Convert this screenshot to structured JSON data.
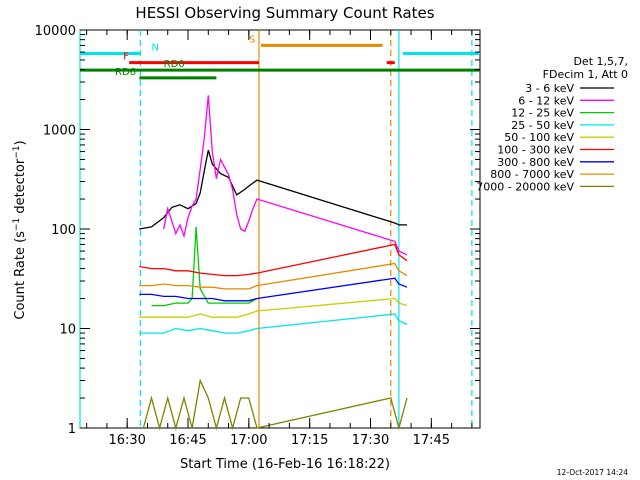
{
  "chart_data": {
    "type": "line",
    "title": "HESSI Observing Summary Count Rates",
    "xlabel": "Start Time (16-Feb-16 16:18:22)",
    "ylabel": "Count Rate (s⁻¹ detector⁻¹)",
    "ylabel_main": "Count Rate (s",
    "ylabel_mid": " detector",
    "ylabel_end": ")",
    "y_scale": "log",
    "ylim": [
      1,
      10000
    ],
    "xlim": [
      "16:18:22",
      "17:57:00"
    ],
    "x_ticks": [
      "16:30",
      "16:45",
      "17:00",
      "17:15",
      "17:30",
      "17:45"
    ],
    "y_ticks": [
      "1",
      "10",
      "100",
      "1000",
      "10000"
    ],
    "grid": false,
    "legend_placement": "right",
    "legend_header": [
      "Det 1,5,7,",
      "FDecim 1, Att 0"
    ],
    "timestamp": "12-Oct-2017 14:24",
    "series": [
      {
        "name": "3 - 6 keV",
        "color": "#000000",
        "points": [
          [
            "16:33",
            100
          ],
          [
            "16:36",
            105
          ],
          [
            "16:39",
            130
          ],
          [
            "16:41",
            165
          ],
          [
            "16:43",
            175
          ],
          [
            "16:45",
            160
          ],
          [
            "16:47",
            180
          ],
          [
            "16:48",
            230
          ],
          [
            "16:49",
            380
          ],
          [
            "16:50",
            620
          ],
          [
            "16:51",
            450
          ],
          [
            "16:53",
            360
          ],
          [
            "16:55",
            330
          ],
          [
            "16:57",
            220
          ],
          [
            "16:59",
            250
          ],
          [
            "17:00",
            270
          ],
          [
            "17:02",
            310
          ],
          [
            "17:36",
            115
          ],
          [
            "17:37",
            110
          ],
          [
            "17:39",
            110
          ]
        ]
      },
      {
        "name": "6 - 12 keV",
        "color": "#ff00ff",
        "points": [
          [
            "16:39",
            100
          ],
          [
            "16:40",
            160
          ],
          [
            "16:41",
            120
          ],
          [
            "16:42",
            90
          ],
          [
            "16:43",
            110
          ],
          [
            "16:44",
            85
          ],
          [
            "16:45",
            130
          ],
          [
            "16:46",
            170
          ],
          [
            "16:47",
            200
          ],
          [
            "16:48",
            400
          ],
          [
            "16:49",
            800
          ],
          [
            "16:50",
            2200
          ],
          [
            "16:51",
            600
          ],
          [
            "16:52",
            320
          ],
          [
            "16:53",
            500
          ],
          [
            "16:55",
            350
          ],
          [
            "16:56",
            250
          ],
          [
            "16:57",
            140
          ],
          [
            "16:58",
            100
          ],
          [
            "16:59",
            95
          ],
          [
            "17:00",
            120
          ],
          [
            "17:01",
            160
          ],
          [
            "17:02",
            200
          ],
          [
            "17:36",
            75
          ],
          [
            "17:37",
            60
          ],
          [
            "17:39",
            55
          ]
        ]
      },
      {
        "name": "12 - 25 keV",
        "color": "#00cc00",
        "points": [
          [
            "16:36",
            17
          ],
          [
            "16:39",
            17
          ],
          [
            "16:42",
            18
          ],
          [
            "16:45",
            18
          ],
          [
            "16:46",
            20
          ],
          [
            "16:47",
            105
          ],
          [
            "16:48",
            25
          ],
          [
            "16:50",
            18
          ],
          [
            "16:53",
            18
          ],
          [
            "16:57",
            18
          ],
          [
            "17:00",
            18
          ],
          [
            "17:02",
            20
          ]
        ]
      },
      {
        "name": "25 - 50 keV",
        "color": "#00e6e6",
        "points": [
          [
            "16:33",
            9
          ],
          [
            "16:36",
            9
          ],
          [
            "16:39",
            9
          ],
          [
            "16:42",
            10
          ],
          [
            "16:45",
            9.5
          ],
          [
            "16:48",
            10
          ],
          [
            "16:51",
            9.5
          ],
          [
            "16:54",
            9
          ],
          [
            "16:57",
            9
          ],
          [
            "17:00",
            9.5
          ],
          [
            "17:02",
            10
          ],
          [
            "17:36",
            14
          ],
          [
            "17:37",
            12
          ],
          [
            "17:39",
            11
          ]
        ]
      },
      {
        "name": "50 - 100 keV",
        "color": "#cccc00",
        "points": [
          [
            "16:33",
            13
          ],
          [
            "16:36",
            13
          ],
          [
            "16:39",
            13
          ],
          [
            "16:42",
            13
          ],
          [
            "16:45",
            13
          ],
          [
            "16:48",
            14
          ],
          [
            "16:51",
            13
          ],
          [
            "16:54",
            13
          ],
          [
            "16:57",
            13
          ],
          [
            "17:00",
            14
          ],
          [
            "17:02",
            15
          ],
          [
            "17:36",
            20
          ],
          [
            "17:37",
            18
          ],
          [
            "17:39",
            17
          ]
        ]
      },
      {
        "name": "100 - 300 keV",
        "color": "#ff0000",
        "points": [
          [
            "16:33",
            42
          ],
          [
            "16:36",
            40
          ],
          [
            "16:39",
            40
          ],
          [
            "16:42",
            38
          ],
          [
            "16:45",
            38
          ],
          [
            "16:48",
            36
          ],
          [
            "16:51",
            35
          ],
          [
            "16:54",
            34
          ],
          [
            "16:57",
            34
          ],
          [
            "17:00",
            35
          ],
          [
            "17:02",
            36
          ],
          [
            "17:36",
            70
          ],
          [
            "17:37",
            55
          ],
          [
            "17:39",
            48
          ]
        ]
      },
      {
        "name": "300 - 800 keV",
        "color": "#0000ff",
        "points": [
          [
            "16:33",
            22
          ],
          [
            "16:36",
            22
          ],
          [
            "16:39",
            21
          ],
          [
            "16:42",
            21
          ],
          [
            "16:45",
            20
          ],
          [
            "16:48",
            20
          ],
          [
            "16:51",
            20
          ],
          [
            "16:54",
            19
          ],
          [
            "16:57",
            19
          ],
          [
            "17:00",
            19
          ],
          [
            "17:02",
            20
          ],
          [
            "17:36",
            32
          ],
          [
            "17:37",
            28
          ],
          [
            "17:39",
            26
          ]
        ]
      },
      {
        "name": "800 - 7000 keV",
        "color": "#e68a00",
        "points": [
          [
            "16:33",
            27
          ],
          [
            "16:36",
            27
          ],
          [
            "16:39",
            28
          ],
          [
            "16:42",
            27
          ],
          [
            "16:45",
            27
          ],
          [
            "16:48",
            26
          ],
          [
            "16:51",
            26
          ],
          [
            "16:54",
            25
          ],
          [
            "16:57",
            25
          ],
          [
            "17:00",
            25
          ],
          [
            "17:02",
            27
          ],
          [
            "17:36",
            45
          ],
          [
            "17:37",
            38
          ],
          [
            "17:39",
            34
          ]
        ]
      },
      {
        "name": "7000 - 20000 keV",
        "color": "#808000",
        "points": [
          [
            "16:34",
            1
          ],
          [
            "16:36",
            2
          ],
          [
            "16:38",
            1
          ],
          [
            "16:40",
            2
          ],
          [
            "16:42",
            1
          ],
          [
            "16:44",
            2
          ],
          [
            "16:46",
            1
          ],
          [
            "16:48",
            3
          ],
          [
            "16:50",
            2
          ],
          [
            "16:52",
            1
          ],
          [
            "16:54",
            2
          ],
          [
            "16:56",
            1
          ],
          [
            "16:58",
            2
          ],
          [
            "17:00",
            2
          ],
          [
            "17:02",
            1
          ],
          [
            "17:35",
            2
          ],
          [
            "17:37",
            1
          ],
          [
            "17:39",
            2
          ]
        ]
      }
    ],
    "flags": [
      {
        "label": "N",
        "color": "#00e6e6",
        "y": 5800,
        "start": "16:18:22",
        "end": "16:33:15",
        "label_at": "16:36"
      },
      {
        "label": "N",
        "color": "#00e6e6",
        "y": 5800,
        "start": "17:38:00",
        "end": "17:57:00",
        "label_at": ""
      },
      {
        "label": "S",
        "color": "#e68a00",
        "y": 7000,
        "start": "17:03:00",
        "end": "17:33:00",
        "label_at": "17:00"
      },
      {
        "label": "F",
        "color": "#ff0000",
        "y": 4700,
        "start": "16:30:30",
        "end": "17:02:30",
        "label_at": "16:29"
      },
      {
        "label": "",
        "color": "#ff0000",
        "y": 4700,
        "start": "17:34:00",
        "end": "17:36:00",
        "label_at": ""
      },
      {
        "label": "RD0",
        "color": "#008000",
        "y": 3950,
        "start": "16:18:22",
        "end": "17:57:00",
        "label_at": "16:39"
      },
      {
        "label": "RD6",
        "color": "#008000",
        "y": 3300,
        "start": "16:33:00",
        "end": "16:52:00",
        "label_at": "16:27"
      }
    ],
    "vlines": [
      {
        "t": "16:18:22",
        "color": "#00e6e6",
        "style": "solid"
      },
      {
        "t": "16:33:15",
        "color": "#00e6e6",
        "style": "dashed"
      },
      {
        "t": "17:02:30",
        "color": "#e68a00",
        "style": "solid"
      },
      {
        "t": "17:35:00",
        "color": "#e68a00",
        "style": "dashed"
      },
      {
        "t": "17:37:00",
        "color": "#00e6e6",
        "style": "solid"
      },
      {
        "t": "17:55:00",
        "color": "#00e6e6",
        "style": "dashed"
      }
    ]
  }
}
